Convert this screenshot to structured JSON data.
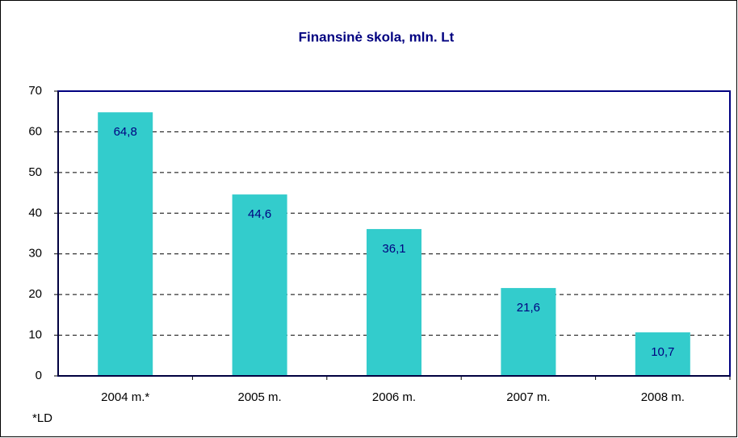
{
  "chart_data": {
    "type": "bar",
    "title": "Finansinė skola, mln. Lt",
    "categories": [
      "2004 m.*",
      "2005 m.",
      "2006 m.",
      "2007 m.",
      "2008 m."
    ],
    "values": [
      64.8,
      44.6,
      36.1,
      21.6,
      10.7
    ],
    "value_labels": [
      "64,8",
      "44,6",
      "36,1",
      "21,6",
      "10,7"
    ],
    "color": "#33cccc",
    "ylim": [
      0,
      70
    ],
    "yticks": [
      0,
      10,
      20,
      30,
      40,
      50,
      60,
      70
    ],
    "grid": true,
    "annotation": "*LD"
  }
}
